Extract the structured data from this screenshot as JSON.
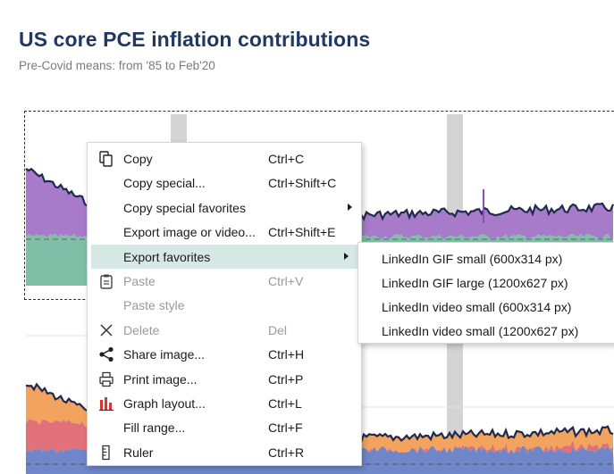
{
  "header": {
    "title": "US core PCE inflation contributions",
    "subtitle": "Pre-Covid means: from '85 to Feb'20"
  },
  "colors": {
    "title": "#1f3864",
    "line": "#1f2a4d",
    "purple_area": "#a77bc9",
    "teal_area": "#7fbfa8",
    "orange_area": "#f2a35e",
    "red_area": "#e0707a",
    "blue_area": "#6f86c9",
    "recession_band": "#d4d4d4",
    "menu_highlight": "#d6e8e3"
  },
  "context_menu": {
    "items": [
      {
        "label": "Copy",
        "shortcut": "Ctrl+C",
        "icon": "copy-icon",
        "disabled": false,
        "submenu": false
      },
      {
        "label": "Copy special...",
        "shortcut": "Ctrl+Shift+C",
        "icon": "",
        "disabled": false,
        "submenu": false
      },
      {
        "label": "Copy special favorites",
        "shortcut": "",
        "icon": "",
        "disabled": false,
        "submenu": true
      },
      {
        "label": "Export image or video...",
        "shortcut": "Ctrl+Shift+E",
        "icon": "",
        "disabled": false,
        "submenu": false
      },
      {
        "label": "Export favorites",
        "shortcut": "",
        "icon": "",
        "disabled": false,
        "submenu": true,
        "highlighted": true
      },
      {
        "label": "Paste",
        "shortcut": "Ctrl+V",
        "icon": "clipboard-icon",
        "disabled": true,
        "submenu": false
      },
      {
        "label": "Paste style",
        "shortcut": "",
        "icon": "",
        "disabled": true,
        "submenu": false
      },
      {
        "label": "Delete",
        "shortcut": "Del",
        "icon": "delete-x-icon",
        "disabled": true,
        "submenu": false
      },
      {
        "label": "Share image...",
        "shortcut": "Ctrl+H",
        "icon": "share-icon",
        "disabled": false,
        "submenu": false
      },
      {
        "label": "Print image...",
        "shortcut": "Ctrl+P",
        "icon": "printer-icon",
        "disabled": false,
        "submenu": false
      },
      {
        "label": "Graph layout...",
        "shortcut": "Ctrl+L",
        "icon": "graph-layout-icon",
        "disabled": false,
        "submenu": false
      },
      {
        "label": "Fill range...",
        "shortcut": "Ctrl+F",
        "icon": "",
        "disabled": false,
        "submenu": false
      },
      {
        "label": "Ruler",
        "shortcut": "Ctrl+R",
        "icon": "ruler-icon",
        "disabled": false,
        "submenu": false
      }
    ]
  },
  "export_favorites_menu": {
    "items": [
      {
        "label": "LinkedIn GIF small (600x314 px)"
      },
      {
        "label": "LinkedIn GIF large (1200x627 px)"
      },
      {
        "label": "LinkedIn video small (600x314 px)"
      },
      {
        "label": "LinkedIn video small (1200x627 px)"
      }
    ]
  }
}
